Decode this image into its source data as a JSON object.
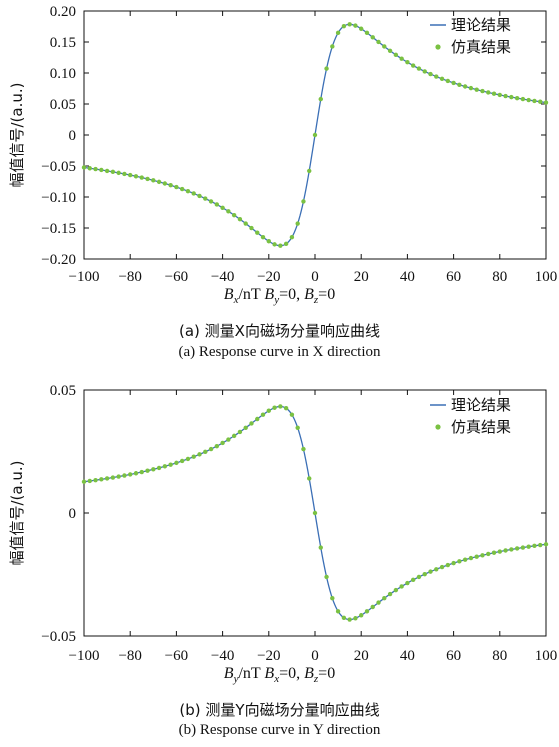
{
  "colors": {
    "theory_line": "#3b6fb6",
    "sim_marker": "#7ac142",
    "axis": "#111111"
  },
  "chart_data": [
    {
      "type": "line",
      "panel": "a",
      "ylabel": "幅值信号/(a.u.)",
      "xlabel_parts": {
        "var": "B",
        "sub": "x",
        "rest": "/nT  ",
        "b2": "B",
        "s2": "y",
        "r2": "=0, ",
        "b3": "B",
        "s3": "z",
        "r3": "=0"
      },
      "xlim": [
        -100,
        100
      ],
      "ylim": [
        -0.2,
        0.2
      ],
      "xticks": [
        "−100",
        "−80",
        "−60",
        "−40",
        "−20",
        "0",
        "20",
        "40",
        "60",
        "80",
        "100"
      ],
      "yticks": [
        "0.20",
        "0.15",
        "0.10",
        "0.05",
        "0",
        "−0.05",
        "−0.10",
        "−0.15",
        "−0.20"
      ],
      "legend": [
        "理论结果",
        "仿真结果"
      ],
      "legend_position": "top-right",
      "series": [
        {
          "name": "理论结果",
          "kind": "line",
          "function": "dispersive",
          "amplitude": 0.1785,
          "peak_x": 15,
          "sign": 1
        },
        {
          "name": "仿真结果",
          "kind": "markers",
          "function": "dispersive",
          "amplitude": 0.1785,
          "peak_x": 15,
          "sign": 1
        }
      ],
      "caption_cn": "(a) 测量X向磁场分量响应曲线",
      "caption_en": "(a) Response curve in X direction"
    },
    {
      "type": "line",
      "panel": "b",
      "ylabel": "幅值信号/(a.u.)",
      "xlabel_parts": {
        "var": "B",
        "sub": "y",
        "rest": "/nT  ",
        "b2": "B",
        "s2": "x",
        "r2": "=0, ",
        "b3": "B",
        "s3": "z",
        "r3": "=0"
      },
      "xlim": [
        -100,
        100
      ],
      "ylim": [
        -0.05,
        0.05
      ],
      "xticks": [
        "−100",
        "−80",
        "−60",
        "−40",
        "−20",
        "0",
        "20",
        "40",
        "60",
        "80",
        "100"
      ],
      "yticks": [
        "0.05",
        "0",
        "−0.05"
      ],
      "legend": [
        "理论结果",
        "仿真结果"
      ],
      "legend_position": "top-right",
      "series": [
        {
          "name": "理论结果",
          "kind": "line",
          "function": "dispersive",
          "amplitude": 0.0433,
          "peak_x": 15,
          "sign": -1
        },
        {
          "name": "仿真结果",
          "kind": "markers",
          "function": "dispersive",
          "amplitude": 0.0433,
          "peak_x": 15,
          "sign": -1
        }
      ],
      "caption_cn": "(b) 测量Y向磁场分量响应曲线",
      "caption_en": "(b) Response curve in Y direction"
    }
  ]
}
